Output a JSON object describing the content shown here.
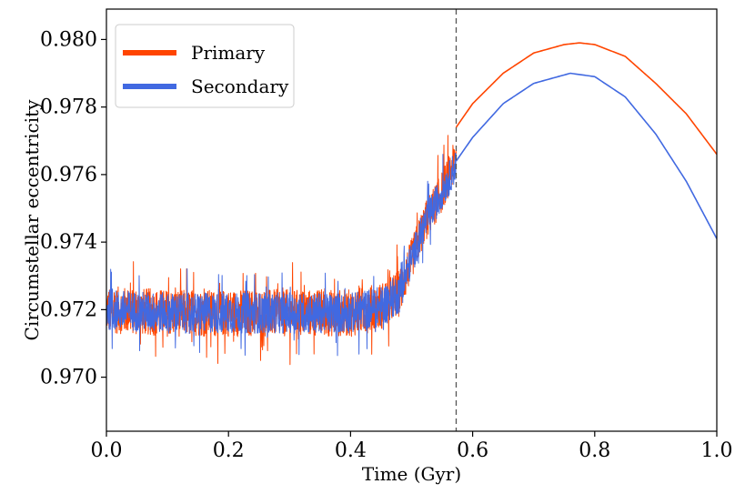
{
  "chart_data": {
    "type": "line",
    "title": "",
    "xlabel": "Time (Gyr)",
    "ylabel": "Circumstellar eccentricity",
    "xlim": [
      0.0,
      1.0
    ],
    "ylim": [
      0.9684,
      0.9809
    ],
    "x_ticks": [
      0.0,
      0.2,
      0.4,
      0.6,
      0.8,
      1.0
    ],
    "x_tick_labels": [
      "0.0",
      "0.2",
      "0.4",
      "0.6",
      "0.8",
      "1.0"
    ],
    "y_ticks": [
      0.97,
      0.972,
      0.974,
      0.976,
      0.978,
      0.98
    ],
    "y_tick_labels": [
      "0.970",
      "0.972",
      "0.974",
      "0.976",
      "0.978",
      "0.980"
    ],
    "grid": false,
    "legend_position": "top-left",
    "vline": {
      "x": 0.573,
      "style": "dashed",
      "color": "#555555"
    },
    "series": [
      {
        "name": "Primary",
        "color": "#FF4500",
        "noisy_region": {
          "x": [
            0.0,
            0.1,
            0.2,
            0.3,
            0.4,
            0.45,
            0.48,
            0.5,
            0.52,
            0.55,
            0.573
          ],
          "mean": [
            0.972,
            0.9719,
            0.9719,
            0.9719,
            0.9719,
            0.9721,
            0.9725,
            0.9735,
            0.9745,
            0.9755,
            0.9765
          ],
          "amplitude": [
            0.0007,
            0.0007,
            0.0007,
            0.0007,
            0.0007,
            0.0007,
            0.0007,
            0.0006,
            0.0006,
            0.0006,
            0.0006
          ]
        },
        "smooth_region": {
          "x": [
            0.573,
            0.6,
            0.65,
            0.7,
            0.75,
            0.775,
            0.8,
            0.85,
            0.9,
            0.95,
            1.0
          ],
          "y": [
            0.9774,
            0.9781,
            0.979,
            0.9796,
            0.97985,
            0.9799,
            0.97985,
            0.9795,
            0.9787,
            0.9778,
            0.9766
          ]
        }
      },
      {
        "name": "Secondary",
        "color": "#4169E1",
        "noisy_region": {
          "x": [
            0.0,
            0.1,
            0.2,
            0.3,
            0.4,
            0.45,
            0.48,
            0.5,
            0.52,
            0.55,
            0.573
          ],
          "mean": [
            0.972,
            0.9719,
            0.9719,
            0.9719,
            0.9719,
            0.9721,
            0.9725,
            0.9735,
            0.9745,
            0.9755,
            0.9763
          ],
          "amplitude": [
            0.0006,
            0.0006,
            0.0006,
            0.0006,
            0.0006,
            0.0006,
            0.0006,
            0.0005,
            0.0005,
            0.0005,
            0.0005
          ]
        },
        "smooth_region": {
          "x": [
            0.573,
            0.6,
            0.65,
            0.7,
            0.76,
            0.8,
            0.85,
            0.9,
            0.95,
            1.0
          ],
          "y": [
            0.9764,
            0.9771,
            0.9781,
            0.9787,
            0.979,
            0.9789,
            0.9783,
            0.9772,
            0.9758,
            0.9741
          ]
        }
      }
    ]
  }
}
